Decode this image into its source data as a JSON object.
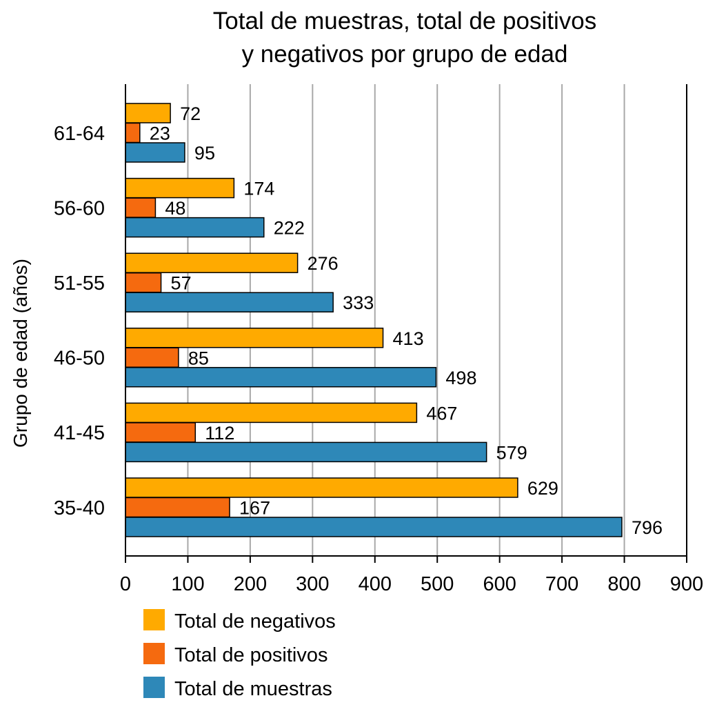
{
  "chart_data": {
    "type": "bar",
    "orientation": "horizontal",
    "title": [
      "Total de muestras, total de positivos",
      "y negativos por grupo de edad"
    ],
    "xlabel": "",
    "ylabel": "Grupo de edad (años)",
    "xlim": [
      0,
      900
    ],
    "xticks": [
      0,
      100,
      200,
      300,
      400,
      500,
      600,
      700,
      800,
      900
    ],
    "grid": "vertical",
    "categories": [
      "61-64",
      "56-60",
      "51-55",
      "46-50",
      "41-45",
      "35-40"
    ],
    "series": [
      {
        "name": "Total de negativos",
        "color": "#FFAA00",
        "values": [
          72,
          174,
          276,
          413,
          467,
          629
        ]
      },
      {
        "name": "Total de positivos",
        "color": "#F56A0F",
        "values": [
          23,
          48,
          57,
          85,
          112,
          167
        ]
      },
      {
        "name": "Total de muestras",
        "color": "#2E88B8",
        "values": [
          95,
          222,
          333,
          498,
          579,
          796
        ]
      }
    ],
    "legend_position": "bottom-left"
  }
}
